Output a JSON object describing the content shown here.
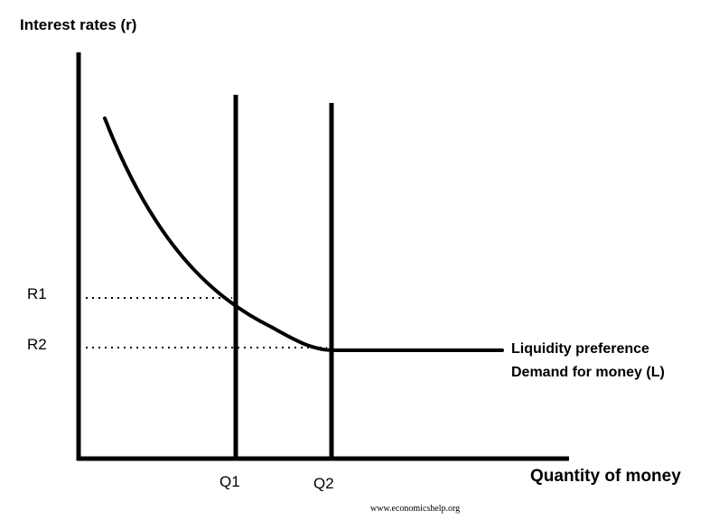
{
  "diagram": {
    "y_axis_label": "Interest rates (r)",
    "x_axis_label": "Quantity of money",
    "rate_labels": [
      "R1",
      "R2"
    ],
    "quantity_labels": [
      "Q1",
      "Q2"
    ],
    "curve_label_line1": "Liquidity preference",
    "curve_label_line2": "Demand for money (L)",
    "credit": "www.economicshelp.org",
    "colors": {
      "ink": "#000000",
      "background": "#ffffff"
    }
  }
}
